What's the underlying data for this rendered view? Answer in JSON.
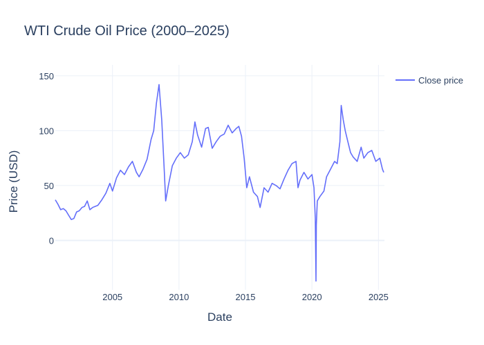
{
  "chart_data": {
    "type": "line",
    "title": "WTI Crude Oil Price (2000–2025)",
    "xlabel": "Date",
    "ylabel": "Price (USD)",
    "xlim": [
      2000.7,
      2025.45
    ],
    "ylim": [
      -45,
      160
    ],
    "x_ticks": [
      2005,
      2010,
      2015,
      2020,
      2025
    ],
    "y_ticks": [
      0,
      50,
      100,
      150
    ],
    "grid": true,
    "legend_position": "top-right",
    "line_color": "#636efa",
    "series": [
      {
        "name": "Close price",
        "x": [
          2000.7,
          2000.9,
          2001.1,
          2001.3,
          2001.5,
          2001.7,
          2001.9,
          2002.1,
          2002.3,
          2002.5,
          2002.7,
          2002.9,
          2003.1,
          2003.3,
          2003.5,
          2003.7,
          2003.9,
          2004.2,
          2004.5,
          2004.8,
          2005.0,
          2005.3,
          2005.6,
          2005.9,
          2006.2,
          2006.5,
          2006.8,
          2007.0,
          2007.3,
          2007.6,
          2007.9,
          2008.1,
          2008.3,
          2008.5,
          2008.7,
          2008.9,
          2009.0,
          2009.2,
          2009.5,
          2009.8,
          2010.1,
          2010.4,
          2010.7,
          2011.0,
          2011.2,
          2011.4,
          2011.7,
          2012.0,
          2012.2,
          2012.5,
          2012.8,
          2013.1,
          2013.4,
          2013.7,
          2014.0,
          2014.3,
          2014.5,
          2014.7,
          2014.9,
          2015.1,
          2015.3,
          2015.6,
          2015.9,
          2016.1,
          2016.4,
          2016.7,
          2017.0,
          2017.3,
          2017.6,
          2017.9,
          2018.2,
          2018.5,
          2018.8,
          2018.95,
          2019.1,
          2019.4,
          2019.7,
          2020.0,
          2020.15,
          2020.25,
          2020.3,
          2020.33,
          2020.4,
          2020.6,
          2020.9,
          2021.1,
          2021.4,
          2021.7,
          2021.9,
          2022.1,
          2022.2,
          2022.35,
          2022.5,
          2022.7,
          2022.9,
          2023.1,
          2023.4,
          2023.7,
          2023.9,
          2024.2,
          2024.5,
          2024.8,
          2025.1,
          2025.3,
          2025.4
        ],
        "y": [
          37,
          33,
          28,
          29,
          27,
          23,
          19,
          20,
          26,
          27,
          30,
          31,
          36,
          28,
          30,
          31,
          32,
          37,
          43,
          52,
          45,
          57,
          64,
          60,
          67,
          72,
          62,
          58,
          65,
          74,
          92,
          100,
          125,
          142,
          110,
          62,
          36,
          50,
          68,
          75,
          80,
          75,
          78,
          90,
          108,
          96,
          85,
          102,
          103,
          84,
          90,
          95,
          97,
          105,
          98,
          102,
          104,
          95,
          75,
          48,
          58,
          44,
          40,
          30,
          48,
          44,
          52,
          50,
          47,
          56,
          64,
          70,
          72,
          48,
          55,
          62,
          56,
          60,
          48,
          20,
          -37,
          14,
          36,
          40,
          45,
          58,
          65,
          72,
          70,
          90,
          123,
          110,
          100,
          90,
          80,
          76,
          72,
          85,
          75,
          80,
          82,
          72,
          75,
          65,
          62
        ]
      }
    ]
  }
}
